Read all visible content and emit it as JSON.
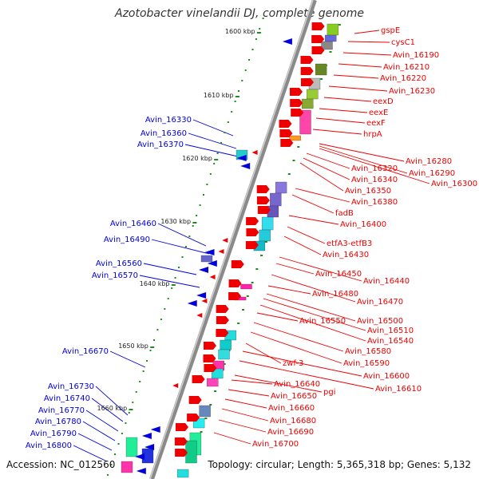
{
  "header": {
    "title": "Azotobacter vinelandii DJ, complete genome"
  },
  "footer": {
    "accession": "Accession: NC_012560",
    "summary": "Topology: circular; Length: 5,365,318 bp; Genes: 5,132"
  },
  "scale_labels": [
    "1600 kbp",
    "1610 kbp",
    "1620 kbp",
    "1630 kbp",
    "1640 kbp",
    "1650 kbp",
    "1660 kbp"
  ],
  "genes_right": [
    "gspE",
    "cysC1",
    "Avin_16190",
    "Avin_16210",
    "Avin_16220",
    "Avin_16230",
    "eexD",
    "eexE",
    "eexF",
    "hrpA",
    "Avin_16280",
    "Avin_16290",
    "Avin_16300",
    "Avin_16320",
    "Avin_16340",
    "Avin_16350",
    "Avin_16380",
    "fadB",
    "Avin_16400",
    "etfA3-etfB3",
    "Avin_16430",
    "Avin_16440",
    "Avin_16450",
    "Avin_16470",
    "Avin_16480",
    "Avin_16500",
    "Avin_16510",
    "Avin_16540",
    "Avin_16550",
    "Avin_16580",
    "Avin_16590",
    "zwf-3",
    "Avin_16600",
    "Avin_16610",
    "pgi",
    "Avin_16640",
    "Avin_16650",
    "Avin_16660",
    "Avin_16680",
    "Avin_16690",
    "Avin_16700"
  ],
  "genes_left": [
    "Avin_16330",
    "Avin_16360",
    "Avin_16370",
    "Avin_16460",
    "Avin_16490",
    "Avin_16560",
    "Avin_16570",
    "Avin_16670",
    "Avin_16730",
    "Avin_16740",
    "Avin_16770",
    "Avin_16780",
    "Avin_16790",
    "Avin_16800"
  ],
  "colors": {
    "forward_strand": "#ee0000",
    "reverse_strand": "#0000dd",
    "backbone": "#888888",
    "ticks": "#1e8c1e"
  }
}
